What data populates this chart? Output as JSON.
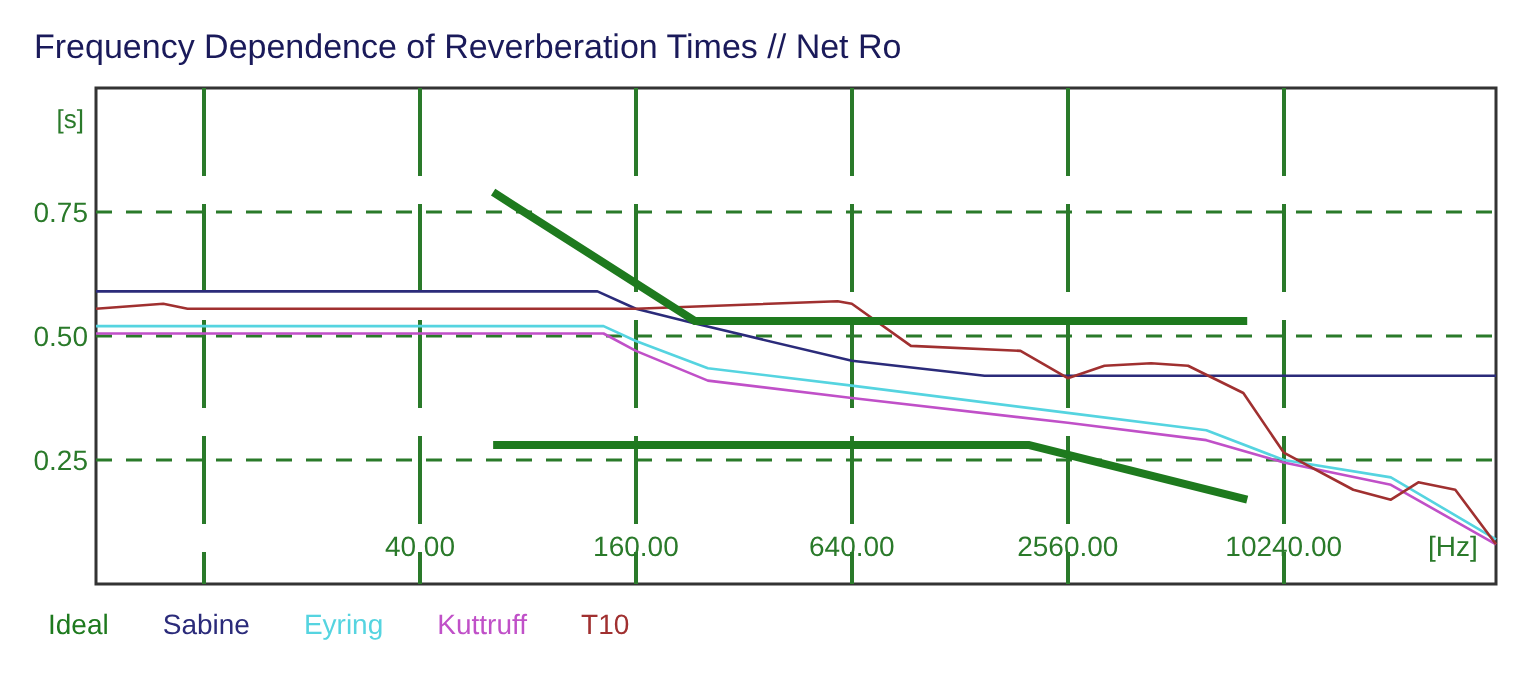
{
  "chart_data": {
    "type": "line",
    "title": "Frequency Dependence of Reverberation Times // Net Ro",
    "xlabel": "[Hz]",
    "ylabel": "[s]",
    "log": "x",
    "xlim": [
      5,
      40000
    ],
    "ylim": [
      0,
      1
    ],
    "xticks": [
      {
        "value": 10,
        "label": null
      },
      {
        "value": 40,
        "label": "40.00"
      },
      {
        "value": 160,
        "label": "160.00"
      },
      {
        "value": 640,
        "label": "640.00"
      },
      {
        "value": 2560,
        "label": "2560.00"
      },
      {
        "value": 10240,
        "label": "10240.00"
      }
    ],
    "yticks": [
      {
        "value": 0.25,
        "label": "0.25"
      },
      {
        "value": 0.5,
        "label": "0.50"
      },
      {
        "value": 0.75,
        "label": "0.75"
      }
    ],
    "grid": true,
    "legend": "bottom",
    "marker": "none",
    "line_style": "solid",
    "series": [
      {
        "name": "Ideal",
        "color": "#1e7a1e",
        "x": [
          64,
          234,
          8100,
          null,
          64,
          2000,
          8100
        ],
        "values": [
          0.79,
          0.53,
          0.53,
          null,
          0.28,
          0.28,
          0.17
        ]
      },
      {
        "name": "Sabine",
        "color": "#2b2b7a",
        "x": [
          5,
          125,
          160,
          234,
          640,
          1500,
          40000
        ],
        "values": [
          0.59,
          0.59,
          0.555,
          0.525,
          0.45,
          0.42,
          0.42
        ]
      },
      {
        "name": "Eyring",
        "color": "#55d4e0",
        "x": [
          5,
          130,
          160,
          254,
          640,
          2560,
          6230,
          10240,
          20370,
          40000
        ],
        "values": [
          0.52,
          0.52,
          0.49,
          0.435,
          0.4,
          0.345,
          0.31,
          0.25,
          0.215,
          0.09
        ]
      },
      {
        "name": "Kuttruff",
        "color": "#c050c8",
        "x": [
          5,
          130,
          160,
          254,
          640,
          2560,
          6230,
          10240,
          20370,
          40000
        ],
        "values": [
          0.505,
          0.505,
          0.47,
          0.41,
          0.375,
          0.325,
          0.29,
          0.245,
          0.2,
          0.08
        ]
      },
      {
        "name": "T10",
        "color": "#a03030",
        "x": [
          5,
          7.7,
          9,
          160,
          584,
          640,
          935,
          1890,
          2560,
          3240,
          4370,
          5540,
          7900,
          10240,
          16000,
          20370,
          24300,
          30800,
          40000
        ],
        "values": [
          0.555,
          0.565,
          0.555,
          0.555,
          0.57,
          0.565,
          0.48,
          0.47,
          0.415,
          0.44,
          0.445,
          0.44,
          0.385,
          0.265,
          0.19,
          0.17,
          0.205,
          0.19,
          0.08
        ]
      }
    ]
  }
}
